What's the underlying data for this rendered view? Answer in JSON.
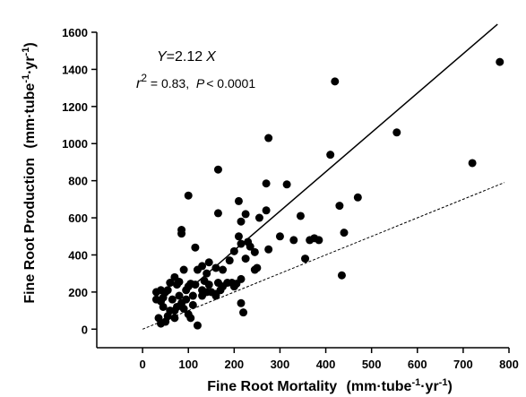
{
  "chart_data": {
    "type": "scatter",
    "title": "",
    "xlabel": {
      "main": "Fine Root Mortality",
      "units_prefix": "(mm",
      "units_mid1": "tube",
      "sup1": "-1",
      "units_mid2": "yr",
      "sup2": "-1",
      "units_suffix": ")"
    },
    "ylabel": {
      "main": "Fine Root Production",
      "units_prefix": "(mm",
      "units_mid1": "tube",
      "sup1": "-1",
      "units_mid2": "yr",
      "sup2": "-1",
      "units_suffix": ")"
    },
    "xlim": [
      -100,
      800
    ],
    "ylim": [
      -100,
      1600
    ],
    "xticks": [
      0,
      100,
      200,
      300,
      400,
      500,
      600,
      700,
      800
    ],
    "yticks": [
      0,
      200,
      400,
      600,
      800,
      1000,
      1200,
      1400,
      1600
    ],
    "grid": false,
    "annotations": {
      "equation": {
        "y": "Y",
        "eq": "=2.12",
        "x": "X"
      },
      "stats": {
        "r": "r",
        "exp": "2",
        "mid": " = 0.83,  ",
        "p": "P",
        "rest": "< 0.0001"
      }
    },
    "regression_line": {
      "slope": 2.12,
      "x_range": [
        95,
        775
      ],
      "style": "solid"
    },
    "reference_line": {
      "slope": 1.0,
      "x_range": [
        0,
        790
      ],
      "style": "dashed"
    },
    "points": [
      [
        780,
        1440
      ],
      [
        420,
        1335
      ],
      [
        275,
        1030
      ],
      [
        555,
        1060
      ],
      [
        720,
        895
      ],
      [
        410,
        940
      ],
      [
        165,
        860
      ],
      [
        100,
        720
      ],
      [
        85,
        535
      ],
      [
        85,
        515
      ],
      [
        315,
        780
      ],
      [
        270,
        785
      ],
      [
        470,
        710
      ],
      [
        255,
        600
      ],
      [
        270,
        640
      ],
      [
        210,
        690
      ],
      [
        225,
        620
      ],
      [
        165,
        625
      ],
      [
        345,
        610
      ],
      [
        215,
        580
      ],
      [
        430,
        665
      ],
      [
        440,
        520
      ],
      [
        435,
        290
      ],
      [
        275,
        430
      ],
      [
        300,
        500
      ],
      [
        330,
        480
      ],
      [
        355,
        380
      ],
      [
        365,
        480
      ],
      [
        375,
        490
      ],
      [
        385,
        480
      ],
      [
        210,
        500
      ],
      [
        215,
        460
      ],
      [
        230,
        470
      ],
      [
        235,
        445
      ],
      [
        245,
        415
      ],
      [
        250,
        330
      ],
      [
        225,
        380
      ],
      [
        200,
        420
      ],
      [
        190,
        370
      ],
      [
        175,
        320
      ],
      [
        160,
        330
      ],
      [
        145,
        360
      ],
      [
        140,
        300
      ],
      [
        130,
        340
      ],
      [
        115,
        440
      ],
      [
        120,
        320
      ],
      [
        105,
        245
      ],
      [
        100,
        230
      ],
      [
        95,
        210
      ],
      [
        90,
        320
      ],
      [
        80,
        255
      ],
      [
        75,
        240
      ],
      [
        70,
        280
      ],
      [
        60,
        250
      ],
      [
        55,
        210
      ],
      [
        50,
        200
      ],
      [
        40,
        210
      ],
      [
        30,
        200
      ],
      [
        30,
        160
      ],
      [
        40,
        150
      ],
      [
        45,
        120
      ],
      [
        35,
        60
      ],
      [
        40,
        30
      ],
      [
        50,
        40
      ],
      [
        55,
        70
      ],
      [
        60,
        100
      ],
      [
        65,
        160
      ],
      [
        70,
        100
      ],
      [
        75,
        120
      ],
      [
        80,
        180
      ],
      [
        85,
        140
      ],
      [
        90,
        110
      ],
      [
        95,
        160
      ],
      [
        100,
        80
      ],
      [
        105,
        60
      ],
      [
        110,
        180
      ],
      [
        115,
        240
      ],
      [
        120,
        20
      ],
      [
        130,
        180
      ],
      [
        135,
        260
      ],
      [
        140,
        200
      ],
      [
        145,
        240
      ],
      [
        150,
        200
      ],
      [
        160,
        180
      ],
      [
        165,
        250
      ],
      [
        170,
        210
      ],
      [
        175,
        230
      ],
      [
        185,
        250
      ],
      [
        195,
        250
      ],
      [
        200,
        230
      ],
      [
        205,
        245
      ],
      [
        215,
        140
      ],
      [
        220,
        90
      ],
      [
        215,
        270
      ],
      [
        245,
        320
      ],
      [
        160,
        190
      ],
      [
        130,
        210
      ],
      [
        110,
        130
      ],
      [
        70,
        60
      ],
      [
        45,
        170
      ]
    ]
  }
}
